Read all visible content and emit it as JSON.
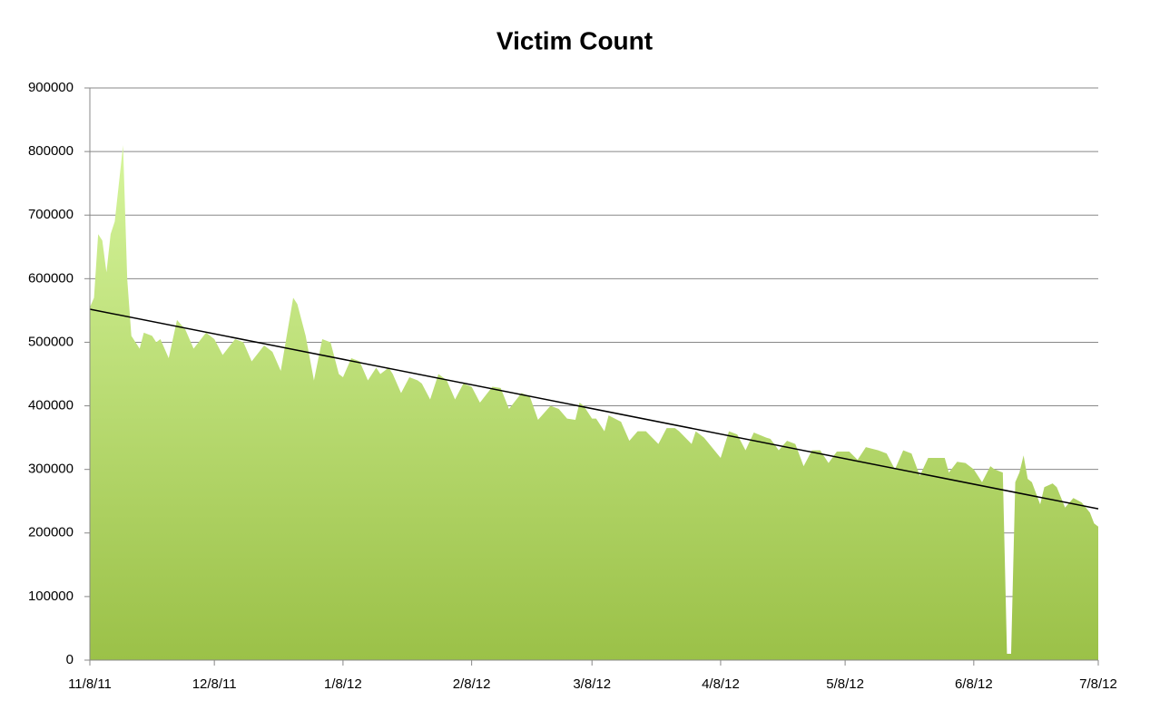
{
  "chart_data": {
    "type": "area",
    "title": "Victim Count",
    "x": [
      0,
      1,
      2,
      3,
      4,
      5,
      6,
      8,
      9,
      10,
      12,
      13,
      15,
      16,
      17,
      19,
      21,
      23,
      25,
      28,
      30,
      32,
      35,
      37,
      39,
      42,
      44,
      46,
      49,
      50,
      52,
      54,
      56,
      58,
      60,
      61,
      63,
      65,
      67,
      69,
      70,
      72,
      73,
      75,
      77,
      79,
      80,
      82,
      84,
      86,
      88,
      90,
      92,
      94,
      97,
      99,
      101,
      104,
      106,
      108,
      111,
      113,
      115,
      117,
      118,
      119,
      121,
      122,
      124,
      125,
      128,
      130,
      132,
      134,
      137,
      139,
      141,
      142,
      145,
      146,
      148,
      152,
      154,
      156,
      158,
      160,
      163,
      164,
      166,
      168,
      170,
      172,
      174,
      176,
      178,
      180,
      183,
      185,
      187,
      190,
      192,
      194,
      196,
      198,
      200,
      202,
      204,
      206,
      207,
      209,
      211,
      213,
      215,
      217,
      218,
      220,
      221,
      222,
      223,
      224,
      225,
      226,
      227,
      229,
      230,
      232,
      233,
      235,
      237,
      239,
      241,
      242,
      243
    ],
    "values": [
      555000,
      570000,
      670000,
      660000,
      610000,
      670000,
      690000,
      810000,
      600000,
      510000,
      490000,
      515000,
      510000,
      500000,
      505000,
      475000,
      535000,
      520000,
      490000,
      515000,
      505000,
      480000,
      505000,
      500000,
      470000,
      495000,
      485000,
      455000,
      570000,
      560000,
      510000,
      440000,
      505000,
      500000,
      450000,
      445000,
      475000,
      470000,
      440000,
      460000,
      450000,
      460000,
      450000,
      420000,
      445000,
      440000,
      435000,
      410000,
      450000,
      440000,
      410000,
      435000,
      430000,
      405000,
      430000,
      428000,
      395000,
      420000,
      415000,
      378000,
      400000,
      395000,
      380000,
      378000,
      405000,
      400000,
      380000,
      380000,
      360000,
      385000,
      375000,
      345000,
      360000,
      360000,
      340000,
      365000,
      365000,
      360000,
      340000,
      360000,
      350000,
      318000,
      360000,
      355000,
      330000,
      358000,
      350000,
      348000,
      330000,
      345000,
      340000,
      305000,
      330000,
      330000,
      310000,
      328000,
      328000,
      315000,
      335000,
      330000,
      325000,
      300000,
      330000,
      325000,
      290000,
      318000,
      318000,
      318000,
      295000,
      312000,
      310000,
      300000,
      280000,
      305000,
      300000,
      295000,
      10000,
      10000,
      280000,
      295000,
      322000,
      285000,
      280000,
      245000,
      272000,
      278000,
      272000,
      240000,
      255000,
      248000,
      232000,
      215000,
      210000
    ],
    "color_top": "#d6f59c",
    "color_bottom": "#9bc148",
    "trendline": {
      "x": [
        0,
        243
      ],
      "values": [
        552000,
        238000
      ],
      "color": "#000000"
    },
    "xlim": [
      0,
      243
    ],
    "xticks": [
      {
        "value": 0,
        "label": "11/8/11"
      },
      {
        "value": 30,
        "label": "12/8/11"
      },
      {
        "value": 61,
        "label": "1/8/12"
      },
      {
        "value": 92,
        "label": "2/8/12"
      },
      {
        "value": 121,
        "label": "3/8/12"
      },
      {
        "value": 152,
        "label": "4/8/12"
      },
      {
        "value": 182,
        "label": "5/8/12"
      },
      {
        "value": 213,
        "label": "6/8/12"
      },
      {
        "value": 243,
        "label": "7/8/12"
      }
    ],
    "ylim": [
      0,
      900000
    ],
    "yticks": [
      0,
      100000,
      200000,
      300000,
      400000,
      500000,
      600000,
      700000,
      800000,
      900000
    ],
    "grid": true
  }
}
